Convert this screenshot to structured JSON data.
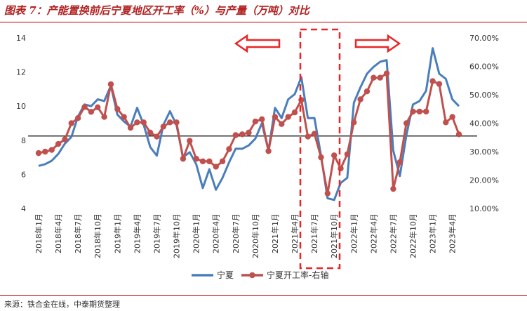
{
  "header": {
    "title": "图表 7：产能置换前后宁夏地区开工率（%）与产量（万吨）对比"
  },
  "footer": {
    "source": "来源：铁合金在线，中泰期货整理"
  },
  "colors": {
    "title": "#b22222",
    "series_production": "#4a7ebb",
    "series_rate": "#c0504d",
    "arrow": "#e8262a",
    "highlight_box": "#e8262a",
    "reference_line": "#000000"
  },
  "chart_data": {
    "type": "line",
    "x": [
      "2018年1月",
      "2018年2月",
      "2018年3月",
      "2018年4月",
      "2018年5月",
      "2018年6月",
      "2018年7月",
      "2018年8月",
      "2018年9月",
      "2018年10月",
      "2018年11月",
      "2018年12月",
      "2019年1月",
      "2019年2月",
      "2019年3月",
      "2019年4月",
      "2019年5月",
      "2019年6月",
      "2019年7月",
      "2019年8月",
      "2019年9月",
      "2019年10月",
      "2019年11月",
      "2019年12月",
      "2020年1月",
      "2020年2月",
      "2020年3月",
      "2020年4月",
      "2020年5月",
      "2020年6月",
      "2020年7月",
      "2020年8月",
      "2020年9月",
      "2020年10月",
      "2020年11月",
      "2020年12月",
      "2021年1月",
      "2021年2月",
      "2021年3月",
      "2021年4月",
      "2021年5月",
      "2021年6月",
      "2021年7月",
      "2021年8月",
      "2021年9月",
      "2021年10月",
      "2021年11月",
      "2021年12月",
      "2022年1月",
      "2022年2月",
      "2022年3月",
      "2022年4月",
      "2022年5月",
      "2022年6月",
      "2022年7月",
      "2022年8月",
      "2022年9月",
      "2022年10月",
      "2022年11月",
      "2022年12月",
      "2023年1月",
      "2023年2月",
      "2023年3月",
      "2023年4月",
      "2023年5月"
    ],
    "x_tick_labels": [
      "2018年1月",
      "2018年4月",
      "2018年7月",
      "2018年10月",
      "2019年1月",
      "2019年4月",
      "2019年7月",
      "2019年10月",
      "2020年1月",
      "2020年4月",
      "2020年7月",
      "2020年10月",
      "2021年1月",
      "2021年4月",
      "2021年7月",
      "2021年10月",
      "2022年1月",
      "2022年4月",
      "2022年7月",
      "2022年10月",
      "2023年1月",
      "2023年4月"
    ],
    "y_left": {
      "ticks": [
        "4",
        "6",
        "8",
        "10",
        "12",
        "14"
      ],
      "range": [
        4,
        14
      ]
    },
    "y_right": {
      "ticks": [
        "10.00%",
        "20.00%",
        "30.00%",
        "40.00%",
        "50.00%",
        "60.00%",
        "70.00%"
      ],
      "range": [
        10,
        70
      ]
    },
    "series": [
      {
        "name": "宁夏",
        "axis": "left",
        "marker": "none",
        "values": [
          6.5,
          6.6,
          6.8,
          7.2,
          7.8,
          8.2,
          9.4,
          10.1,
          10.0,
          10.4,
          10.3,
          11.2,
          9.5,
          9.1,
          8.8,
          9.9,
          8.9,
          7.6,
          7.1,
          8.9,
          9.7,
          8.9,
          7.0,
          7.3,
          6.6,
          5.2,
          6.3,
          5.1,
          5.8,
          6.7,
          7.5,
          7.5,
          7.7,
          8.1,
          9.0,
          7.4,
          9.9,
          9.3,
          10.4,
          10.7,
          11.7,
          9.3,
          9.3,
          7.1,
          4.6,
          4.5,
          5.5,
          5.8,
          10.2,
          11.1,
          11.9,
          12.3,
          12.6,
          12.7,
          7.4,
          5.9,
          8.3,
          10.1,
          10.3,
          10.9,
          13.4,
          11.9,
          11.6,
          10.4,
          10.0
        ]
      },
      {
        "name": "宁夏开工率-右轴",
        "axis": "right",
        "marker": "circle",
        "values": [
          29.5,
          30.0,
          30.6,
          32.7,
          34.3,
          40.0,
          41.8,
          45.7,
          44.0,
          45.6,
          42.2,
          53.7,
          45.0,
          42.2,
          38.4,
          40.3,
          40.3,
          36.7,
          35.3,
          38.8,
          40.3,
          40.3,
          27.5,
          33.8,
          27.5,
          26.6,
          26.6,
          24.7,
          26.6,
          30.9,
          35.8,
          36.1,
          36.7,
          40.6,
          41.4,
          30.2,
          42.2,
          39.7,
          42.2,
          43.8,
          48.2,
          35.3,
          36.3,
          28.0,
          15.3,
          28.7,
          24.1,
          29.1,
          40.3,
          48.4,
          51.2,
          56.0,
          56.0,
          57.5,
          16.9,
          26.3,
          40.0,
          44.1,
          44.1,
          44.1,
          54.8,
          53.8,
          40.3,
          42.2,
          36.1
        ]
      }
    ],
    "reference_line": {
      "axis": "right",
      "value": 35.5
    },
    "legend_position": "bottom"
  }
}
